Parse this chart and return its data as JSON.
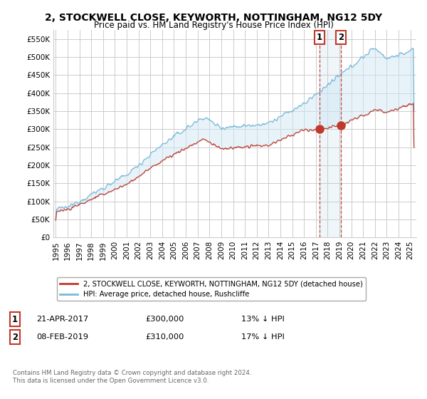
{
  "title": "2, STOCKWELL CLOSE, KEYWORTH, NOTTINGHAM, NG12 5DY",
  "subtitle": "Price paid vs. HM Land Registry's House Price Index (HPI)",
  "title_fontsize": 10,
  "subtitle_fontsize": 8.5,
  "ylabel_ticks": [
    "£0",
    "£50K",
    "£100K",
    "£150K",
    "£200K",
    "£250K",
    "£300K",
    "£350K",
    "£400K",
    "£450K",
    "£500K",
    "£550K"
  ],
  "ylabel_values": [
    0,
    50000,
    100000,
    150000,
    200000,
    250000,
    300000,
    350000,
    400000,
    450000,
    500000,
    550000
  ],
  "ylim": [
    0,
    575000
  ],
  "xlim_start": 1994.8,
  "xlim_end": 2025.5,
  "x_tick_years": [
    1995,
    1996,
    1997,
    1998,
    1999,
    2000,
    2001,
    2002,
    2003,
    2004,
    2005,
    2006,
    2007,
    2008,
    2009,
    2010,
    2011,
    2012,
    2013,
    2014,
    2015,
    2016,
    2017,
    2018,
    2019,
    2020,
    2021,
    2022,
    2023,
    2024,
    2025
  ],
  "legend_entry1": "2, STOCKWELL CLOSE, KEYWORTH, NOTTINGHAM, NG12 5DY (detached house)",
  "legend_entry2": "HPI: Average price, detached house, Rushcliffe",
  "marker1_x": 2017.31,
  "marker1_y": 300000,
  "marker1_label": "1",
  "marker1_date": "21-APR-2017",
  "marker1_price": "£300,000",
  "marker1_hpi": "13% ↓ HPI",
  "marker2_x": 2019.12,
  "marker2_y": 310000,
  "marker2_label": "2",
  "marker2_date": "08-FEB-2019",
  "marker2_price": "£310,000",
  "marker2_hpi": "17% ↓ HPI",
  "copyright_text": "Contains HM Land Registry data © Crown copyright and database right 2024.\nThis data is licensed under the Open Government Licence v3.0.",
  "hpi_color": "#7ab8d9",
  "price_color": "#c0392b",
  "marker_color": "#c0392b",
  "grid_color": "#cccccc",
  "bg_color": "#ffffff",
  "vline_color": "#c0392b",
  "marker_box_color": "#c0392b",
  "fill_color": "#d0e8f5",
  "fill_alpha": 0.5
}
